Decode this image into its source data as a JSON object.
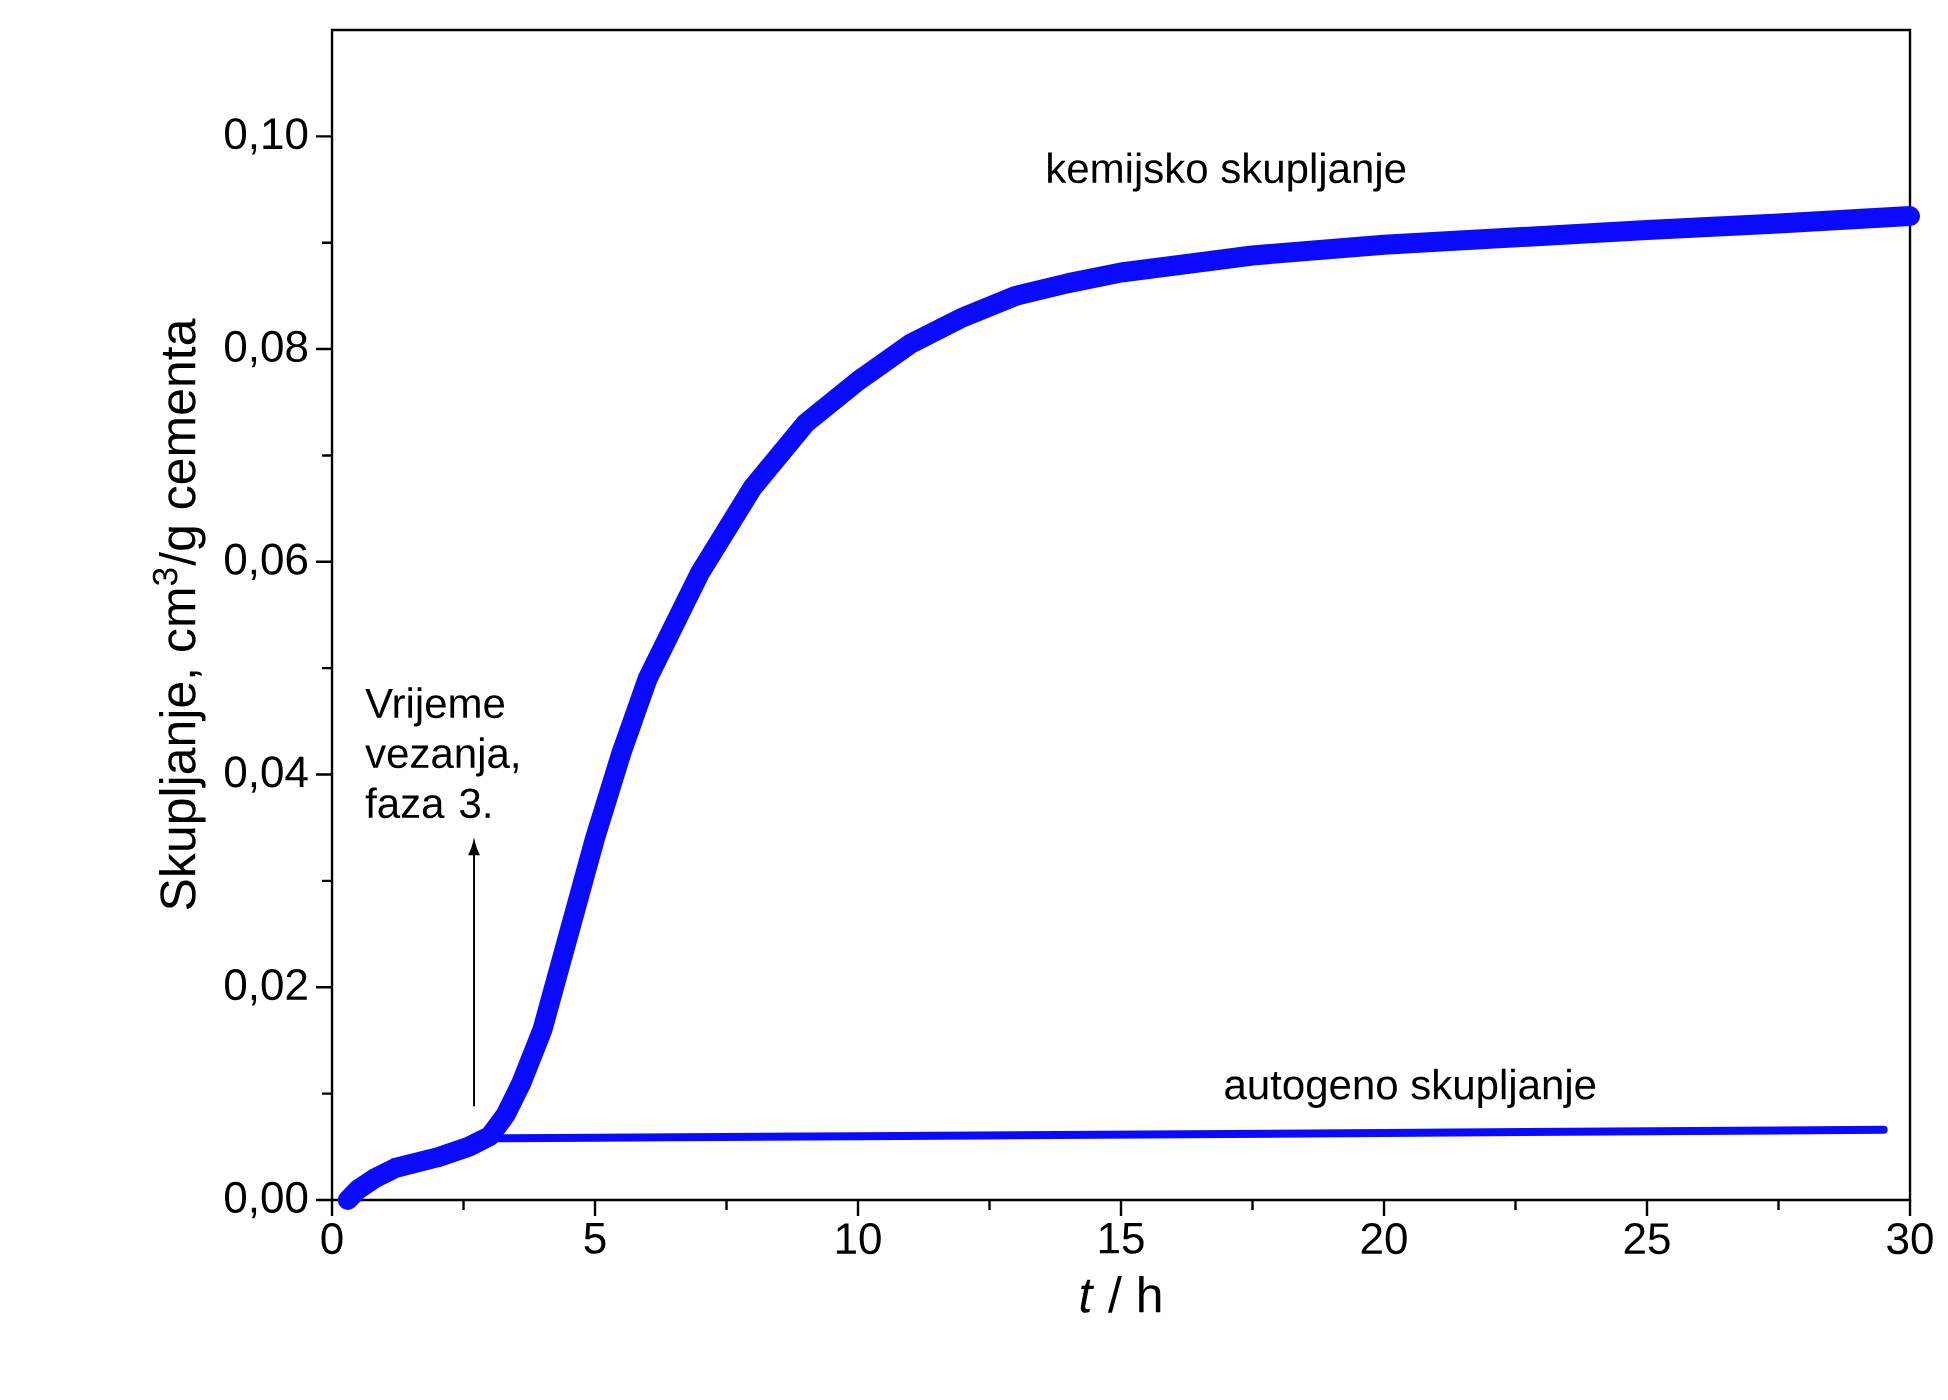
{
  "chart_data": {
    "type": "line",
    "xlabel": "*t* / h",
    "ylabel": "Skupljanje, cm$^{3}$/g cementa",
    "xlim": [
      0,
      30
    ],
    "ylim": [
      0,
      0.11
    ],
    "xticks": [
      0,
      {
        "value": 2.5,
        "label": null
      },
      5,
      {
        "value": 7.5,
        "label": null
      },
      10,
      {
        "value": 12.5,
        "label": null
      },
      15,
      {
        "value": 17.5,
        "label": null
      },
      20,
      {
        "value": 22.5,
        "label": null
      },
      25,
      {
        "value": 27.5,
        "label": null
      },
      30
    ],
    "yticks": [
      {
        "value": 0,
        "label": "0,00"
      },
      {
        "value": 0.01,
        "label": null
      },
      {
        "value": 0.02,
        "label": "0,02"
      },
      {
        "value": 0.03,
        "label": null
      },
      {
        "value": 0.04,
        "label": "0,04"
      },
      {
        "value": 0.05,
        "label": null
      },
      {
        "value": 0.06,
        "label": "0,06"
      },
      {
        "value": 0.07,
        "label": null
      },
      {
        "value": 0.08,
        "label": "0,08"
      },
      {
        "value": 0.09,
        "label": null
      },
      {
        "value": 0.1,
        "label": "0,10"
      }
    ],
    "series": [
      {
        "color": "#0a0aff",
        "x": [
          0.3,
          0.5,
          0.8,
          1.2,
          2,
          2.6,
          3,
          3.3,
          3.6,
          4,
          4.5,
          5,
          5.5,
          6,
          7,
          8,
          9,
          10,
          11,
          12,
          13,
          14,
          15,
          17.5,
          20,
          22.5,
          25,
          27.5,
          30
        ],
        "values": [
          0,
          0.001,
          0.002,
          0.003,
          0.004,
          0.005,
          0.006,
          0.008,
          0.011,
          0.016,
          0.025,
          0.034,
          0.042,
          0.049,
          0.059,
          0.067,
          0.073,
          0.077,
          0.0805,
          0.083,
          0.085,
          0.0862,
          0.0872,
          0.0888,
          0.0898,
          0.0905,
          0.0912,
          0.0918,
          0.0925
        ]
      },
      {
        "color": "#0a0aff",
        "x": [
          0.3,
          0.5,
          0.8,
          1.2,
          2,
          2.6,
          3,
          10,
          20,
          29.5
        ],
        "values": [
          0,
          0.001,
          0.002,
          0.003,
          0.004,
          0.005,
          0.0058,
          0.006,
          0.0063,
          0.0066
        ]
      }
    ],
    "annotations": [
      {
        "text": "kemijsko skupljanje",
        "x": 17,
        "y": 0.0885
      },
      {
        "text": "autogeno skupljanje",
        "x": 20.5,
        "y": 0.0063
      },
      "Vrijeme vezanja, faza 3."
    ],
    "grid": false,
    "marker": "none",
    "line_style": "solid"
  }
}
